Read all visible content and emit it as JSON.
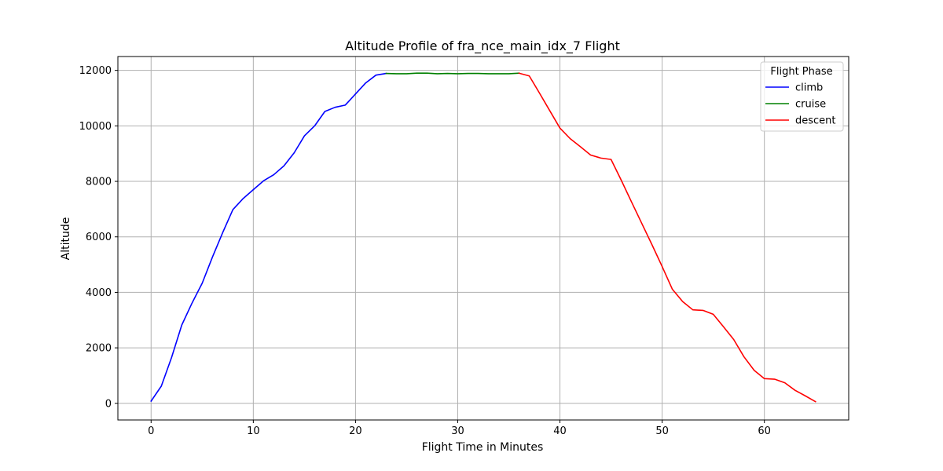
{
  "chart_data": {
    "type": "line",
    "title": "Altitude Profile of fra_nce_main_idx_7 Flight",
    "xlabel": "Flight Time in Minutes",
    "ylabel": "Altitude",
    "xlim": [
      -3.25,
      68.25
    ],
    "ylim": [
      -600,
      12500
    ],
    "xticks": [
      0,
      10,
      20,
      30,
      40,
      50,
      60
    ],
    "yticks": [
      0,
      2000,
      4000,
      6000,
      8000,
      10000,
      12000
    ],
    "grid": true,
    "legend": {
      "title": "Flight Phase",
      "position": "top-right"
    },
    "series": [
      {
        "name": "climb",
        "color": "#0000ff",
        "x": [
          0,
          1,
          2,
          3,
          4,
          5,
          6,
          7,
          8,
          9,
          10,
          11,
          12,
          13,
          14,
          15,
          16,
          17,
          18,
          19,
          20,
          21,
          22,
          23
        ],
        "y": [
          80,
          620,
          1650,
          2820,
          3610,
          4330,
          5270,
          6150,
          6980,
          7380,
          7700,
          8020,
          8240,
          8560,
          9030,
          9640,
          10000,
          10520,
          10670,
          10750,
          11150,
          11550,
          11830,
          11890
        ]
      },
      {
        "name": "cruise",
        "color": "#008000",
        "x": [
          23,
          24,
          25,
          26,
          27,
          28,
          29,
          30,
          31,
          32,
          33,
          34,
          35,
          36
        ],
        "y": [
          11890,
          11880,
          11880,
          11900,
          11900,
          11880,
          11890,
          11880,
          11890,
          11890,
          11880,
          11880,
          11880,
          11900
        ]
      },
      {
        "name": "descent",
        "color": "#ff0000",
        "x": [
          36,
          37,
          38,
          39,
          40,
          41,
          42,
          43,
          44,
          45,
          46,
          47,
          48,
          49,
          50,
          51,
          52,
          53,
          54,
          55,
          56,
          57,
          58,
          59,
          60,
          61,
          62,
          63,
          64,
          65
        ],
        "y": [
          11900,
          11800,
          11180,
          10550,
          9920,
          9540,
          9250,
          8950,
          8840,
          8790,
          8040,
          7260,
          6490,
          5720,
          4930,
          4110,
          3670,
          3370,
          3350,
          3210,
          2760,
          2300,
          1680,
          1190,
          890,
          870,
          740,
          470,
          270,
          60
        ]
      }
    ]
  }
}
